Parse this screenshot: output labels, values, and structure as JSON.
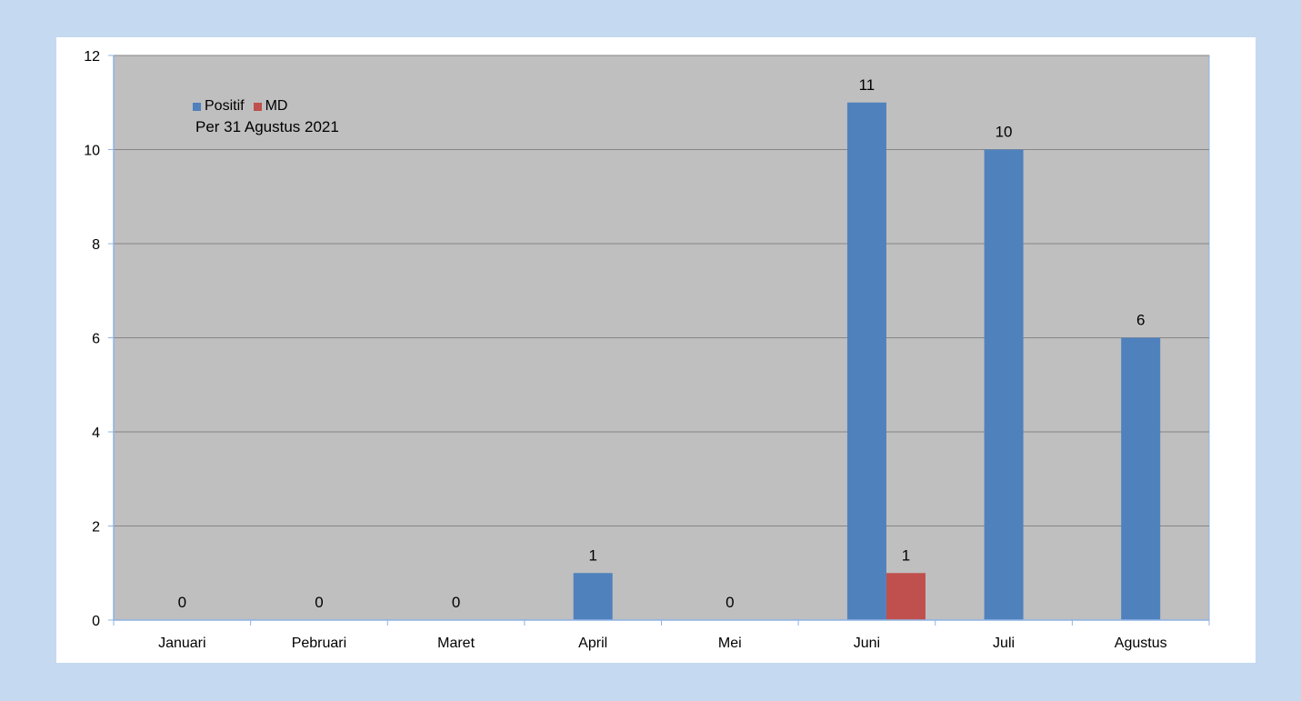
{
  "chart_data": {
    "type": "bar",
    "title": "",
    "subtitle": "Per 31 Agustus 2021",
    "xlabel": "",
    "ylabel": "",
    "categories": [
      "Januari",
      "Pebruari",
      "Maret",
      "April",
      "Mei",
      "Juni",
      "Juli",
      "Agustus"
    ],
    "series": [
      {
        "name": "Positif",
        "color": "#4f81bd",
        "values": [
          0,
          0,
          0,
          1,
          0,
          11,
          10,
          6
        ],
        "labels": [
          "0",
          "0",
          "0",
          "1",
          "0",
          "11",
          "10",
          "6"
        ]
      },
      {
        "name": "MD",
        "color": "#c0504d",
        "values": [
          null,
          null,
          null,
          null,
          null,
          1,
          null,
          null
        ],
        "labels": [
          "",
          "",
          "",
          "",
          "",
          "1",
          "",
          ""
        ]
      }
    ],
    "ylim": [
      0,
      12
    ],
    "yticks": [
      0,
      2,
      4,
      6,
      8,
      10,
      12
    ],
    "grid": true,
    "legend_position": "top-left",
    "plot_background": "#bfbfbf"
  }
}
